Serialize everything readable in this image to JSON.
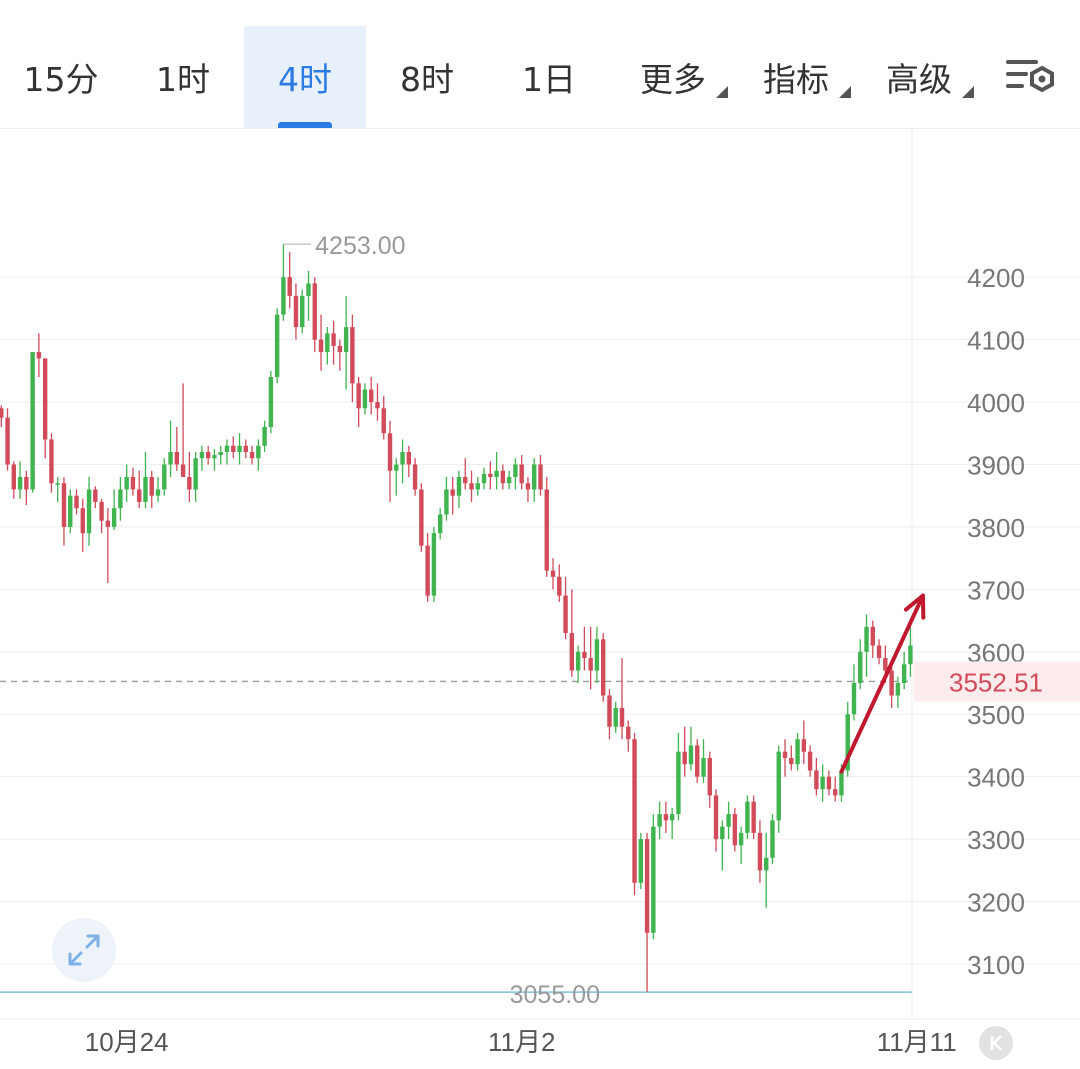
{
  "tabs": [
    {
      "label": "15分"
    },
    {
      "label": "1时"
    },
    {
      "label": "4时",
      "active": true
    },
    {
      "label": "8时"
    },
    {
      "label": "1日"
    },
    {
      "label": "更多"
    },
    {
      "label": "指标"
    },
    {
      "label": "高级"
    }
  ],
  "icons": {
    "settings": "list-settings-icon",
    "expand": "expand-arrows-icon",
    "k": "k-nav-icon"
  },
  "colors": {
    "up": "#3fb44f",
    "down": "#d24b5a",
    "accent": "#2b7be5",
    "arrow": "#c0182e",
    "last_price": "#d24b5a",
    "low_line": "#7ec3d8"
  },
  "chart_data": {
    "type": "candlestick",
    "interval": "4时",
    "y_ticks": [
      3100,
      3200,
      3300,
      3400,
      3500,
      3600,
      3700,
      3800,
      3900,
      4000,
      4100,
      4200
    ],
    "ylim": [
      3030,
      4310
    ],
    "x_labels": [
      {
        "label": "10月24",
        "index": 21
      },
      {
        "label": "11月2",
        "index": 84
      },
      {
        "label": "11月11",
        "index": 147
      }
    ],
    "high_label": {
      "text": "4253.00",
      "value": 4253,
      "index": 45
    },
    "low_label": {
      "text": "3055.00",
      "value": 3055,
      "index": 106
    },
    "last_price": {
      "text": "3552.51",
      "value": 3552.51
    },
    "trend_arrow": {
      "from": {
        "index": 135,
        "value": 3408
      },
      "to": {
        "index": 148,
        "value": 3690
      }
    },
    "candles": [
      [
        4000,
        4000,
        3970,
        3990
      ],
      [
        3990,
        3995,
        3960,
        3975
      ],
      [
        3975,
        3990,
        3890,
        3900
      ],
      [
        3900,
        3905,
        3845,
        3860
      ],
      [
        3860,
        3905,
        3845,
        3880
      ],
      [
        3880,
        3890,
        3835,
        3860
      ],
      [
        3860,
        4080,
        3855,
        4080
      ],
      [
        4080,
        4110,
        4040,
        4070
      ],
      [
        4070,
        4070,
        3910,
        3940
      ],
      [
        3940,
        3950,
        3855,
        3870
      ],
      [
        3870,
        3880,
        3840,
        3870
      ],
      [
        3870,
        3880,
        3770,
        3800
      ],
      [
        3800,
        3860,
        3790,
        3850
      ],
      [
        3850,
        3860,
        3820,
        3830
      ],
      [
        3830,
        3845,
        3760,
        3790
      ],
      [
        3790,
        3880,
        3770,
        3860
      ],
      [
        3860,
        3865,
        3830,
        3840
      ],
      [
        3840,
        3845,
        3790,
        3810
      ],
      [
        3810,
        3830,
        3710,
        3800
      ],
      [
        3800,
        3860,
        3795,
        3830
      ],
      [
        3830,
        3880,
        3810,
        3860
      ],
      [
        3860,
        3900,
        3840,
        3880
      ],
      [
        3880,
        3895,
        3850,
        3860
      ],
      [
        3860,
        3890,
        3830,
        3840
      ],
      [
        3840,
        3920,
        3830,
        3880
      ],
      [
        3880,
        3890,
        3830,
        3850
      ],
      [
        3850,
        3880,
        3840,
        3860
      ],
      [
        3860,
        3910,
        3850,
        3900
      ],
      [
        3900,
        3970,
        3880,
        3920
      ],
      [
        3920,
        3960,
        3890,
        3900
      ],
      [
        3900,
        4030,
        3880,
        3880
      ],
      [
        3880,
        3920,
        3840,
        3860
      ],
      [
        3860,
        3920,
        3840,
        3910
      ],
      [
        3910,
        3930,
        3890,
        3920
      ],
      [
        3920,
        3930,
        3900,
        3910
      ],
      [
        3910,
        3925,
        3890,
        3915
      ],
      [
        3915,
        3930,
        3900,
        3920
      ],
      [
        3920,
        3940,
        3900,
        3930
      ],
      [
        3930,
        3945,
        3910,
        3920
      ],
      [
        3920,
        3950,
        3900,
        3930
      ],
      [
        3930,
        3940,
        3910,
        3920
      ],
      [
        3920,
        3930,
        3900,
        3910
      ],
      [
        3910,
        3940,
        3890,
        3930
      ],
      [
        3930,
        3970,
        3920,
        3960
      ],
      [
        3960,
        4050,
        3950,
        4040
      ],
      [
        4040,
        4150,
        4030,
        4140
      ],
      [
        4140,
        4253,
        4130,
        4200
      ],
      [
        4200,
        4240,
        4150,
        4170
      ],
      [
        4170,
        4190,
        4100,
        4120
      ],
      [
        4120,
        4180,
        4110,
        4170
      ],
      [
        4170,
        4210,
        4130,
        4190
      ],
      [
        4190,
        4200,
        4080,
        4100
      ],
      [
        4100,
        4140,
        4050,
        4080
      ],
      [
        4080,
        4120,
        4060,
        4110
      ],
      [
        4110,
        4130,
        4060,
        4090
      ],
      [
        4090,
        4100,
        4050,
        4080
      ],
      [
        4080,
        4170,
        4020,
        4120
      ],
      [
        4120,
        4140,
        4000,
        4030
      ],
      [
        4030,
        4040,
        3960,
        3990
      ],
      [
        3990,
        4030,
        3980,
        4020
      ],
      [
        4020,
        4040,
        3980,
        4000
      ],
      [
        4000,
        4030,
        3970,
        3990
      ],
      [
        3990,
        4010,
        3940,
        3950
      ],
      [
        3950,
        3970,
        3840,
        3890
      ],
      [
        3890,
        3910,
        3850,
        3900
      ],
      [
        3900,
        3940,
        3870,
        3920
      ],
      [
        3920,
        3930,
        3880,
        3900
      ],
      [
        3900,
        3910,
        3850,
        3860
      ],
      [
        3860,
        3870,
        3760,
        3770
      ],
      [
        3770,
        3790,
        3680,
        3690
      ],
      [
        3690,
        3800,
        3680,
        3790
      ],
      [
        3790,
        3830,
        3780,
        3820
      ],
      [
        3820,
        3880,
        3810,
        3860
      ],
      [
        3860,
        3880,
        3820,
        3850
      ],
      [
        3850,
        3890,
        3830,
        3880
      ],
      [
        3880,
        3910,
        3860,
        3870
      ],
      [
        3870,
        3890,
        3840,
        3860
      ],
      [
        3860,
        3880,
        3850,
        3870
      ],
      [
        3870,
        3895,
        3860,
        3885
      ],
      [
        3885,
        3905,
        3860,
        3880
      ],
      [
        3880,
        3920,
        3860,
        3890
      ],
      [
        3890,
        3900,
        3860,
        3870
      ],
      [
        3870,
        3890,
        3860,
        3880
      ],
      [
        3880,
        3910,
        3860,
        3900
      ],
      [
        3900,
        3915,
        3860,
        3870
      ],
      [
        3870,
        3880,
        3840,
        3860
      ],
      [
        3860,
        3910,
        3840,
        3900
      ],
      [
        3900,
        3915,
        3850,
        3860
      ],
      [
        3860,
        3880,
        3720,
        3730
      ],
      [
        3730,
        3750,
        3700,
        3720
      ],
      [
        3720,
        3740,
        3680,
        3690
      ],
      [
        3690,
        3720,
        3620,
        3630
      ],
      [
        3630,
        3700,
        3560,
        3570
      ],
      [
        3570,
        3610,
        3550,
        3600
      ],
      [
        3600,
        3640,
        3570,
        3590
      ],
      [
        3590,
        3640,
        3540,
        3570
      ],
      [
        3570,
        3640,
        3550,
        3620
      ],
      [
        3620,
        3630,
        3520,
        3530
      ],
      [
        3530,
        3540,
        3460,
        3480
      ],
      [
        3480,
        3520,
        3470,
        3510
      ],
      [
        3510,
        3590,
        3460,
        3480
      ],
      [
        3480,
        3490,
        3440,
        3460
      ],
      [
        3460,
        3470,
        3210,
        3230
      ],
      [
        3230,
        3310,
        3220,
        3300
      ],
      [
        3300,
        3310,
        3055,
        3150
      ],
      [
        3150,
        3340,
        3140,
        3320
      ],
      [
        3320,
        3360,
        3300,
        3340
      ],
      [
        3340,
        3360,
        3310,
        3330
      ],
      [
        3330,
        3350,
        3300,
        3340
      ],
      [
        3340,
        3470,
        3330,
        3440
      ],
      [
        3440,
        3480,
        3400,
        3420
      ],
      [
        3420,
        3480,
        3410,
        3450
      ],
      [
        3450,
        3460,
        3390,
        3400
      ],
      [
        3400,
        3460,
        3390,
        3430
      ],
      [
        3430,
        3440,
        3350,
        3370
      ],
      [
        3370,
        3380,
        3280,
        3300
      ],
      [
        3300,
        3330,
        3250,
        3320
      ],
      [
        3320,
        3360,
        3300,
        3340
      ],
      [
        3340,
        3350,
        3280,
        3290
      ],
      [
        3290,
        3320,
        3260,
        3310
      ],
      [
        3310,
        3370,
        3300,
        3360
      ],
      [
        3360,
        3370,
        3300,
        3310
      ],
      [
        3310,
        3330,
        3230,
        3250
      ],
      [
        3250,
        3310,
        3190,
        3270
      ],
      [
        3270,
        3340,
        3260,
        3330
      ],
      [
        3330,
        3450,
        3310,
        3440
      ],
      [
        3440,
        3460,
        3400,
        3430
      ],
      [
        3430,
        3450,
        3410,
        3420
      ],
      [
        3420,
        3470,
        3410,
        3460
      ],
      [
        3460,
        3490,
        3420,
        3440
      ],
      [
        3440,
        3450,
        3400,
        3410
      ],
      [
        3410,
        3430,
        3370,
        3380
      ],
      [
        3380,
        3420,
        3360,
        3400
      ],
      [
        3400,
        3410,
        3370,
        3380
      ],
      [
        3380,
        3400,
        3360,
        3370
      ],
      [
        3370,
        3420,
        3360,
        3410
      ],
      [
        3410,
        3520,
        3400,
        3500
      ],
      [
        3500,
        3580,
        3490,
        3550
      ],
      [
        3550,
        3620,
        3540,
        3600
      ],
      [
        3600,
        3660,
        3560,
        3640
      ],
      [
        3640,
        3650,
        3590,
        3610
      ],
      [
        3610,
        3620,
        3580,
        3590
      ],
      [
        3590,
        3610,
        3550,
        3570
      ],
      [
        3570,
        3580,
        3510,
        3530
      ],
      [
        3530,
        3560,
        3510,
        3550
      ],
      [
        3550,
        3600,
        3540,
        3580
      ],
      [
        3580,
        3650,
        3560,
        3610
      ],
      [
        3610,
        3620,
        3530,
        3552.51
      ]
    ]
  }
}
